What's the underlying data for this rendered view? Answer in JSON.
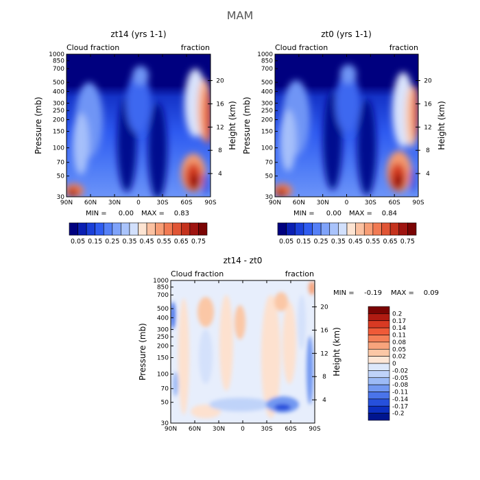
{
  "figure": {
    "title": "MAM"
  },
  "chart_data": [
    {
      "type": "heatmap",
      "title": "zt14 (yrs 1-1)",
      "left_label": "Cloud fraction",
      "right_label": "fraction",
      "ylabel": "Pressure (mb)",
      "ylabel_right": "Height (km)",
      "x_ticks": [
        "90N",
        "60N",
        "30N",
        "0",
        "30S",
        "60S",
        "90S"
      ],
      "y_ticks": [
        "1000",
        "850",
        "700",
        "500",
        "400",
        "300",
        "250",
        "200",
        "150",
        "100",
        "70",
        "50",
        "30"
      ],
      "y_ticks_right": [
        "4",
        "8",
        "12",
        "16",
        "20"
      ],
      "xlim": [
        90,
        -90
      ],
      "ylim": [
        1000,
        30
      ],
      "stats": {
        "min_label": "MIN =",
        "min": "0.00",
        "max_label": "MAX =",
        "max": "0.83"
      },
      "colorbar": {
        "levels": [
          "0.05",
          "0.15",
          "0.25",
          "0.35",
          "0.45",
          "0.55",
          "0.65",
          "0.75"
        ],
        "colors": [
          "#00007f",
          "#0a1fb2",
          "#1a3fd8",
          "#2f5cf0",
          "#5580f7",
          "#7fa3fa",
          "#a9c3fb",
          "#d2e0fc",
          "#fde4d2",
          "#fbc1a1",
          "#f79e76",
          "#f17a53",
          "#e05535",
          "#c4321d",
          "#9f1410",
          "#7a0403"
        ]
      }
    },
    {
      "type": "heatmap",
      "title": "zt0 (yrs 1-1)",
      "left_label": "Cloud fraction",
      "right_label": "fraction",
      "ylabel": "Pressure (mb)",
      "ylabel_right": "Height (km)",
      "x_ticks": [
        "90N",
        "60N",
        "30N",
        "0",
        "30S",
        "60S",
        "90S"
      ],
      "y_ticks": [
        "1000",
        "850",
        "700",
        "500",
        "400",
        "300",
        "250",
        "200",
        "150",
        "100",
        "70",
        "50",
        "30"
      ],
      "y_ticks_right": [
        "4",
        "8",
        "12",
        "16",
        "20"
      ],
      "xlim": [
        90,
        -90
      ],
      "ylim": [
        1000,
        30
      ],
      "stats": {
        "min_label": "MIN =",
        "min": "0.00",
        "max_label": "MAX =",
        "max": "0.84"
      },
      "colorbar": {
        "levels": [
          "0.05",
          "0.15",
          "0.25",
          "0.35",
          "0.45",
          "0.55",
          "0.65",
          "0.75"
        ],
        "colors": [
          "#00007f",
          "#0a1fb2",
          "#1a3fd8",
          "#2f5cf0",
          "#5580f7",
          "#7fa3fa",
          "#a9c3fb",
          "#d2e0fc",
          "#fde4d2",
          "#fbc1a1",
          "#f79e76",
          "#f17a53",
          "#e05535",
          "#c4321d",
          "#9f1410",
          "#7a0403"
        ]
      }
    },
    {
      "type": "heatmap",
      "title": "zt14 - zt0",
      "left_label": "Cloud fraction",
      "right_label": "fraction",
      "ylabel": "Pressure (mb)",
      "ylabel_right": "Height (km)",
      "x_ticks": [
        "90N",
        "60N",
        "30N",
        "0",
        "30S",
        "60S",
        "90S"
      ],
      "y_ticks": [
        "1000",
        "850",
        "700",
        "500",
        "400",
        "300",
        "250",
        "200",
        "150",
        "100",
        "70",
        "50",
        "30"
      ],
      "y_ticks_right": [
        "4",
        "8",
        "12",
        "16",
        "20"
      ],
      "xlim": [
        90,
        -90
      ],
      "ylim": [
        1000,
        30
      ],
      "stats": {
        "min_label": "MIN =",
        "min": "-0.19",
        "max_label": "MAX =",
        "max": "0.09"
      },
      "colorbar": {
        "levels": [
          "0.2",
          "0.17",
          "0.14",
          "0.11",
          "0.08",
          "0.05",
          "0.02",
          "0",
          "-0.02",
          "-0.05",
          "-0.08",
          "-0.11",
          "-0.14",
          "-0.17",
          "-0.2"
        ],
        "colors": [
          "#7a0403",
          "#b01b12",
          "#d93a23",
          "#ef5a38",
          "#f47f57",
          "#f8a47c",
          "#fbc7a6",
          "#fde6d6",
          "#dde8fb",
          "#bfd3f9",
          "#9cbaf6",
          "#7298f1",
          "#4a74ea",
          "#2650dc",
          "#0c2fc0",
          "#00158f"
        ]
      }
    }
  ]
}
